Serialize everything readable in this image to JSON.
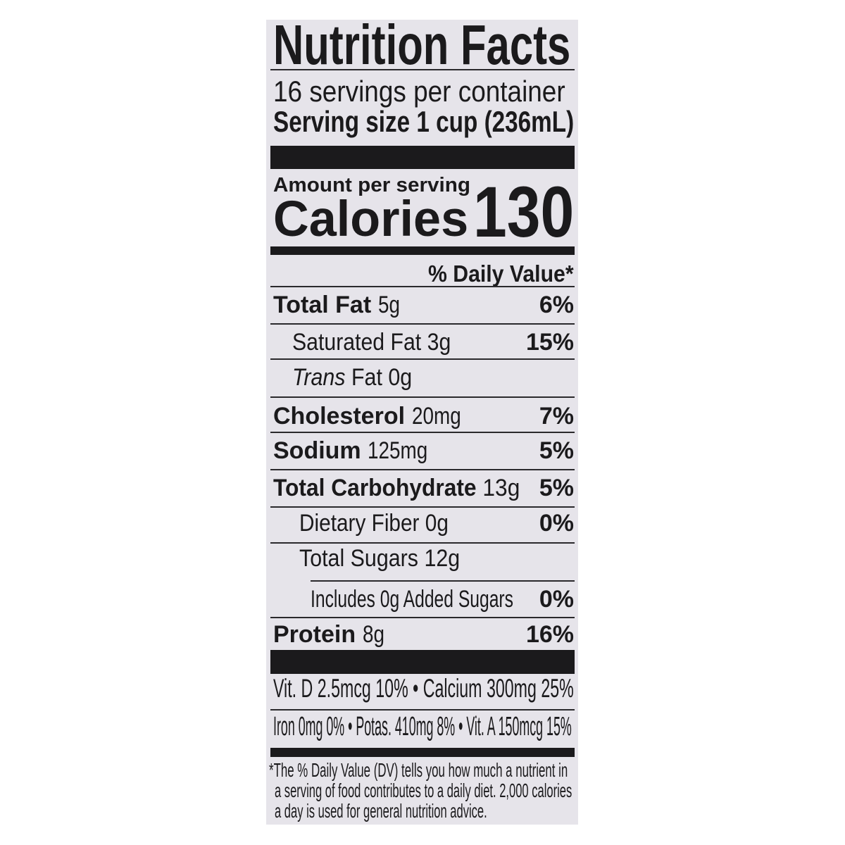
{
  "title": "Nutrition Facts",
  "servings_per_container": "16 servings per container",
  "serving_size": "Serving size 1 cup (236mL)",
  "amount_per_serving": "Amount per serving",
  "calories_label": "Calories",
  "calories_value": "130",
  "daily_value_header": "% Daily Value*",
  "nutrients": [
    {
      "label": "Total Fat",
      "amount": "5g",
      "dv": "6%"
    },
    {
      "label": "Saturated Fat",
      "amount": "3g",
      "dv": "15%"
    },
    {
      "label_italic": "Trans",
      "label": "Fat",
      "amount": "0g",
      "dv": ""
    },
    {
      "label": "Cholesterol",
      "amount": "20mg",
      "dv": "7%"
    },
    {
      "label": "Sodium",
      "amount": "125mg",
      "dv": "5%"
    },
    {
      "label": "Total Carbohydrate",
      "amount": "13g",
      "dv": "5%"
    },
    {
      "label": "Dietary Fiber",
      "amount": "0g",
      "dv": "0%"
    },
    {
      "label": "Total Sugars",
      "amount": "12g",
      "dv": ""
    },
    {
      "label": "Includes 0g Added Sugars",
      "amount": "",
      "dv": "0%"
    },
    {
      "label": "Protein",
      "amount": "8g",
      "dv": "16%"
    }
  ],
  "vitamins_line1": "Vit. D 2.5mcg 10% • Calcium 300mg 25%",
  "vitamins_line2": "Iron 0mg 0% • Potas. 410mg 8% • Vit. A 150mcg 15%",
  "footnote": [
    "*The % Daily Value (DV) tells you how much a nutrient in",
    "a serving of food contributes to a daily diet. 2,000 calories",
    "a day is used for general nutrition advice."
  ]
}
